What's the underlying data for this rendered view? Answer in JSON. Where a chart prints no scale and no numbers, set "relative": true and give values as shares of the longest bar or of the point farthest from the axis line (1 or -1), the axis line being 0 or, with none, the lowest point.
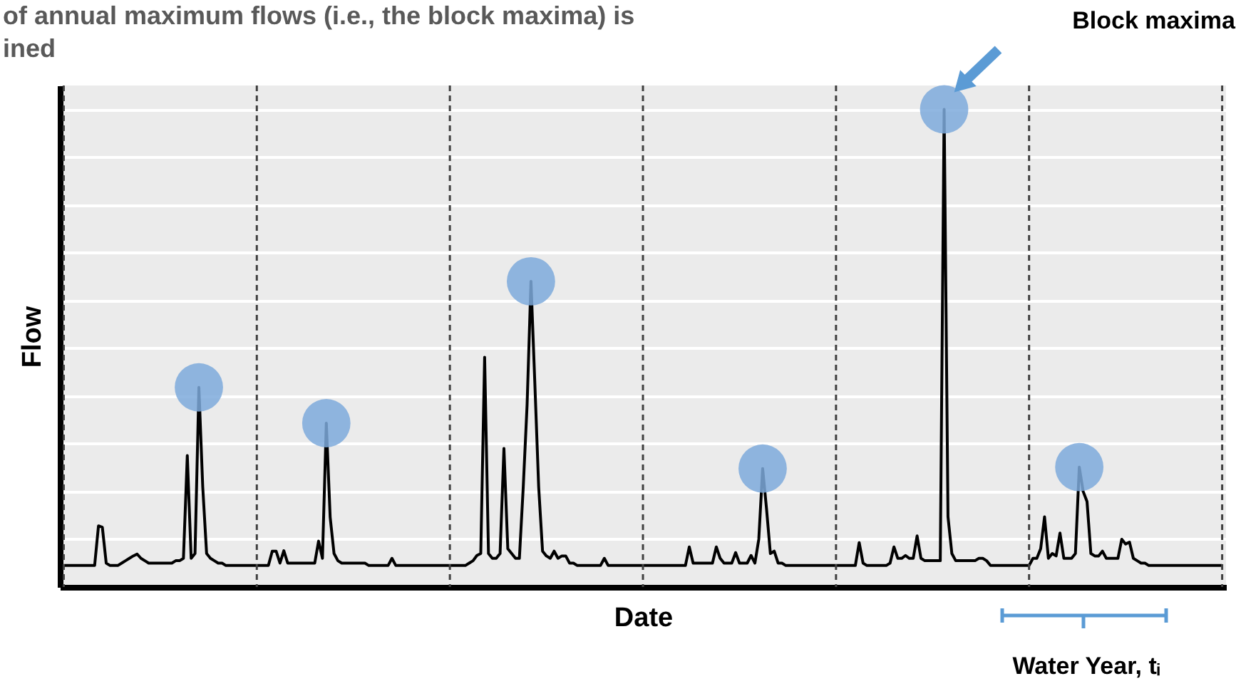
{
  "chart_data": {
    "type": "line",
    "title": "of annual maximum flows  (i.e., the block maxima) is\nined",
    "xlabel": "Date",
    "ylabel": "Flow",
    "relative": true,
    "tick_labels": false,
    "grid": "y",
    "categories": [
      null,
      null,
      null,
      null,
      null,
      null,
      null,
      null,
      null,
      null,
      null,
      null,
      null,
      null,
      null,
      null,
      null,
      null,
      null,
      null,
      null,
      null,
      null,
      null,
      null,
      null,
      null,
      null,
      null,
      null,
      null,
      null,
      null,
      null,
      null,
      null,
      null,
      null,
      null,
      null,
      null,
      null,
      null,
      null,
      null,
      null,
      null,
      null,
      null,
      null,
      null,
      null,
      null,
      null,
      null,
      null,
      null,
      null,
      null,
      null,
      null,
      null,
      null,
      null,
      null,
      null,
      null,
      null,
      null,
      null,
      null,
      null,
      null,
      null,
      null,
      null,
      null,
      null,
      null,
      null,
      null,
      null,
      null,
      null,
      null,
      null,
      null,
      null,
      null,
      null,
      null,
      null,
      null,
      null,
      null,
      null,
      null,
      null,
      null,
      null,
      null,
      null,
      null,
      null,
      null,
      null,
      null,
      null,
      null,
      null,
      null,
      null,
      null,
      null,
      null,
      null,
      null,
      null,
      null,
      null,
      null,
      null,
      null,
      null,
      null,
      null,
      null,
      null,
      null,
      null,
      null,
      null,
      null,
      null,
      null,
      null,
      null,
      null,
      null,
      null,
      null,
      null,
      null,
      null,
      null,
      null,
      null,
      null,
      null,
      null,
      null,
      null,
      null,
      null,
      null,
      null,
      null,
      null,
      null,
      null,
      null,
      null,
      null,
      null,
      null,
      null,
      null,
      null,
      null,
      null,
      null,
      null,
      null,
      null,
      null,
      null,
      null,
      null,
      null,
      null,
      null,
      null,
      null,
      null,
      null,
      null,
      null,
      null,
      null,
      null,
      null,
      null,
      null,
      null,
      null,
      null,
      null,
      null,
      null,
      null,
      null,
      null,
      null,
      null,
      null,
      null,
      null,
      null,
      null,
      null,
      null,
      null,
      null,
      null,
      null,
      null,
      null,
      null,
      null,
      null,
      null,
      null,
      null,
      null,
      null,
      null,
      null,
      null,
      null,
      null,
      null,
      null,
      null,
      null,
      null,
      null,
      null,
      null,
      null,
      null,
      null,
      null,
      null,
      null,
      null,
      null,
      null,
      null,
      null,
      null,
      null,
      null,
      null,
      null,
      null,
      null,
      null,
      null,
      null,
      null,
      null,
      null,
      null,
      null,
      null,
      null,
      null,
      null,
      null,
      null,
      null,
      null,
      null,
      null,
      null,
      null,
      null,
      null,
      null,
      null,
      null,
      null,
      null,
      null,
      null,
      null,
      null,
      null,
      null,
      null,
      null,
      null,
      null,
      null,
      null,
      null,
      null,
      null,
      null,
      null,
      null
    ],
    "series": [
      {
        "color": "#000000",
        "line_style": "solid",
        "values": [
          0.045,
          0.045,
          0.045,
          0.045,
          0.045,
          0.045,
          0.045,
          0.045,
          0.045,
          0.128,
          0.125,
          0.05,
          0.045,
          0.045,
          0.045,
          0.05,
          0.055,
          0.06,
          0.065,
          0.069,
          0.06,
          0.055,
          0.05,
          0.05,
          0.05,
          0.05,
          0.05,
          0.05,
          0.05,
          0.055,
          0.055,
          0.06,
          0.275,
          0.06,
          0.07,
          0.418,
          0.209,
          0.07,
          0.06,
          0.055,
          0.05,
          0.05,
          0.045,
          0.045,
          0.045,
          0.045,
          0.045,
          0.045,
          0.045,
          0.045,
          0.045,
          0.045,
          0.045,
          0.045,
          0.075,
          0.075,
          0.05,
          0.076,
          0.05,
          0.05,
          0.05,
          0.05,
          0.05,
          0.05,
          0.05,
          0.05,
          0.096,
          0.06,
          0.343,
          0.146,
          0.07,
          0.055,
          0.05,
          0.05,
          0.05,
          0.05,
          0.05,
          0.05,
          0.05,
          0.045,
          0.045,
          0.045,
          0.045,
          0.045,
          0.045,
          0.06,
          0.045,
          0.045,
          0.045,
          0.045,
          0.045,
          0.045,
          0.045,
          0.045,
          0.045,
          0.045,
          0.045,
          0.045,
          0.045,
          0.045,
          0.045,
          0.045,
          0.045,
          0.045,
          0.045,
          0.05,
          0.055,
          0.066,
          0.07,
          0.481,
          0.07,
          0.06,
          0.06,
          0.07,
          0.29,
          0.08,
          0.07,
          0.06,
          0.06,
          0.209,
          0.382,
          0.64,
          0.427,
          0.209,
          0.075,
          0.065,
          0.06,
          0.075,
          0.06,
          0.065,
          0.065,
          0.05,
          0.05,
          0.045,
          0.045,
          0.045,
          0.045,
          0.045,
          0.045,
          0.045,
          0.06,
          0.045,
          0.045,
          0.045,
          0.045,
          0.045,
          0.045,
          0.045,
          0.045,
          0.045,
          0.045,
          0.045,
          0.045,
          0.045,
          0.045,
          0.045,
          0.045,
          0.045,
          0.045,
          0.045,
          0.045,
          0.045,
          0.084,
          0.05,
          0.05,
          0.05,
          0.05,
          0.05,
          0.05,
          0.084,
          0.06,
          0.05,
          0.05,
          0.05,
          0.072,
          0.05,
          0.05,
          0.05,
          0.066,
          0.05,
          0.1,
          0.248,
          0.164,
          0.07,
          0.075,
          0.05,
          0.05,
          0.045,
          0.045,
          0.045,
          0.045,
          0.045,
          0.045,
          0.045,
          0.045,
          0.045,
          0.045,
          0.045,
          0.045,
          0.045,
          0.045,
          0.045,
          0.045,
          0.045,
          0.045,
          0.045,
          0.093,
          0.05,
          0.045,
          0.045,
          0.045,
          0.045,
          0.045,
          0.045,
          0.05,
          0.084,
          0.06,
          0.06,
          0.066,
          0.06,
          0.06,
          0.107,
          0.06,
          0.055,
          0.055,
          0.055,
          0.055,
          0.055,
          1,
          0.147,
          0.07,
          0.055,
          0.055,
          0.055,
          0.055,
          0.055,
          0.055,
          0.06,
          0.06,
          0.055,
          0.045,
          0.045,
          0.045,
          0.045,
          0.045,
          0.045,
          0.045,
          0.045,
          0.045,
          0.045,
          0.045,
          0.06,
          0.06,
          0.08,
          0.147,
          0.06,
          0.07,
          0.065,
          0.113,
          0.06,
          0.06,
          0.06,
          0.07,
          0.251,
          0.2,
          0.179,
          0.07,
          0.065,
          0.065,
          0.075,
          0.06,
          0.06,
          0.06,
          0.06,
          0.1,
          0.09,
          0.094,
          0.06,
          0.055,
          0.05,
          0.05,
          0.045,
          0.045,
          0.045,
          0.045,
          0.045,
          0.045,
          0.045,
          0.045,
          0.045,
          0.045,
          0.045,
          0.045,
          0.045,
          0.045,
          0.045,
          0.045,
          0.045,
          0.045,
          0.045,
          0.045
        ]
      }
    ],
    "annotations": [
      "Block maxima",
      "Water Year, tᵢ"
    ]
  }
}
